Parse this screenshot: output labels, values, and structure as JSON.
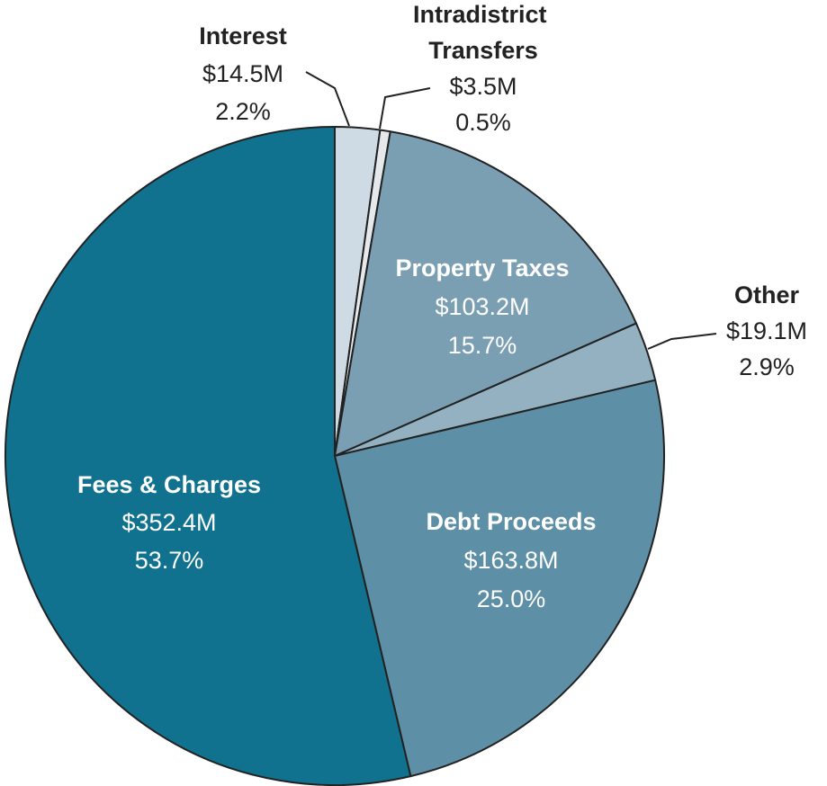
{
  "chart_data": {
    "type": "pie",
    "categories": [
      "Interest",
      "Intradistrict Transfers",
      "Property Taxes",
      "Other",
      "Debt Proceeds",
      "Fees & Charges"
    ],
    "values": [
      2.2,
      0.5,
      15.7,
      2.9,
      25.0,
      53.7
    ],
    "value_labels": [
      "2.2%",
      "0.5%",
      "15.7%",
      "2.9%",
      "25.0%",
      "53.7%"
    ],
    "amount_labels": [
      "$14.5M",
      "$3.5M",
      "$103.2M",
      "$19.1M",
      "$163.8M",
      "$352.4M"
    ],
    "colors": [
      "#cfdbe4",
      "#e6e9ec",
      "#7a9fb3",
      "#93b1c1",
      "#5d8fa6",
      "#10728f"
    ],
    "start_angle": "top",
    "direction": "clockwise"
  }
}
